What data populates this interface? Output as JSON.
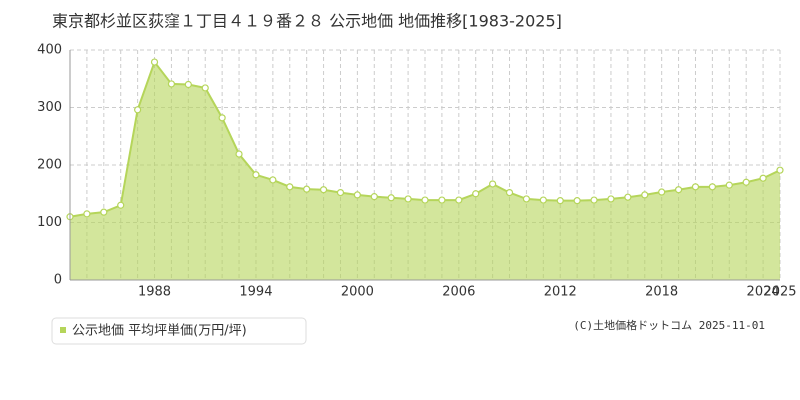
{
  "chart_data": {
    "type": "area",
    "title": "東京都杉並区荻窪１丁目４１９番２８ 公示地価 地価推移[1983-2025]",
    "x": [
      1983,
      1984,
      1985,
      1986,
      1987,
      1988,
      1989,
      1990,
      1991,
      1992,
      1993,
      1994,
      1995,
      1996,
      1997,
      1998,
      1999,
      2000,
      2001,
      2002,
      2003,
      2004,
      2005,
      2006,
      2007,
      2008,
      2009,
      2010,
      2011,
      2012,
      2013,
      2014,
      2015,
      2016,
      2017,
      2018,
      2019,
      2020,
      2021,
      2022,
      2023,
      2024,
      2025
    ],
    "series": [
      {
        "name": "公示地価 平均坪単価(万円/坪)",
        "color": "#b5d55a",
        "values": [
          110,
          115,
          118,
          130,
          296,
          379,
          341,
          340,
          334,
          282,
          219,
          183,
          174,
          162,
          158,
          157,
          152,
          148,
          145,
          143,
          141,
          139,
          139,
          139,
          150,
          167,
          152,
          141,
          139,
          138,
          138,
          139,
          141,
          144,
          148,
          153,
          157,
          162,
          162,
          165,
          170,
          177,
          191
        ]
      }
    ],
    "xlim": [
      1983,
      2025
    ],
    "xticks": [
      1988,
      1994,
      2000,
      2006,
      2012,
      2018,
      2024,
      2025
    ],
    "ylim": [
      0,
      400
    ],
    "yticks": [
      0,
      100,
      200,
      300,
      400
    ],
    "grid": true,
    "source": "(C)土地価格ドットコム 2025-11-01"
  }
}
